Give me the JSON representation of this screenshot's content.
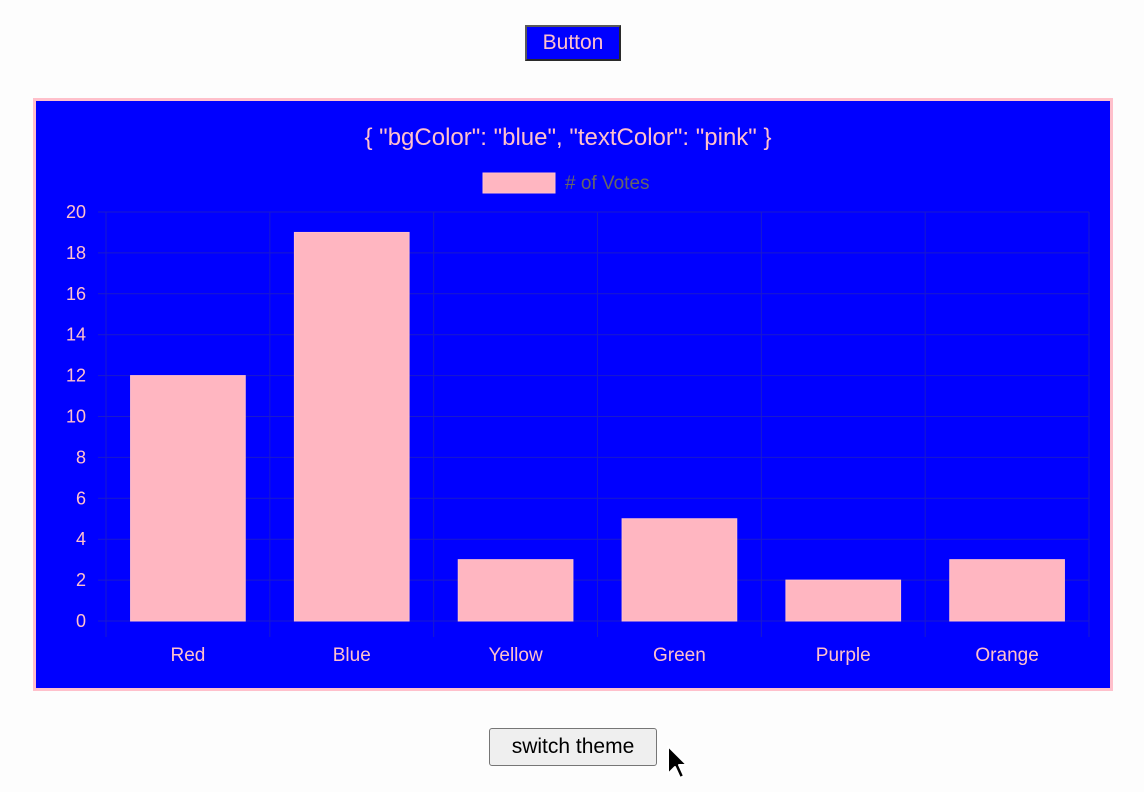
{
  "top_button": {
    "label": "Button"
  },
  "switch_button": {
    "label": "switch theme"
  },
  "cursor": {
    "icon": "arrow-pointer-icon"
  },
  "theme": {
    "bg_color": "#0000ff",
    "text_color": "#ffc0cb",
    "grid_color": "#1a1acc",
    "legend_text_color": "#666666"
  },
  "chart_data": {
    "type": "bar",
    "title": "{ \"bgColor\": \"blue\", \"textColor\": \"pink\" }",
    "categories": [
      "Red",
      "Blue",
      "Yellow",
      "Green",
      "Purple",
      "Orange"
    ],
    "series": [
      {
        "name": "# of Votes",
        "values": [
          12,
          19,
          3,
          5,
          2,
          3
        ],
        "color": "#ffb6c1"
      }
    ],
    "y_ticks": [
      "0",
      "2",
      "4",
      "6",
      "8",
      "10",
      "12",
      "14",
      "16",
      "18",
      "20"
    ],
    "ylim": [
      0,
      20
    ],
    "legend_position": "top",
    "grid": true
  }
}
